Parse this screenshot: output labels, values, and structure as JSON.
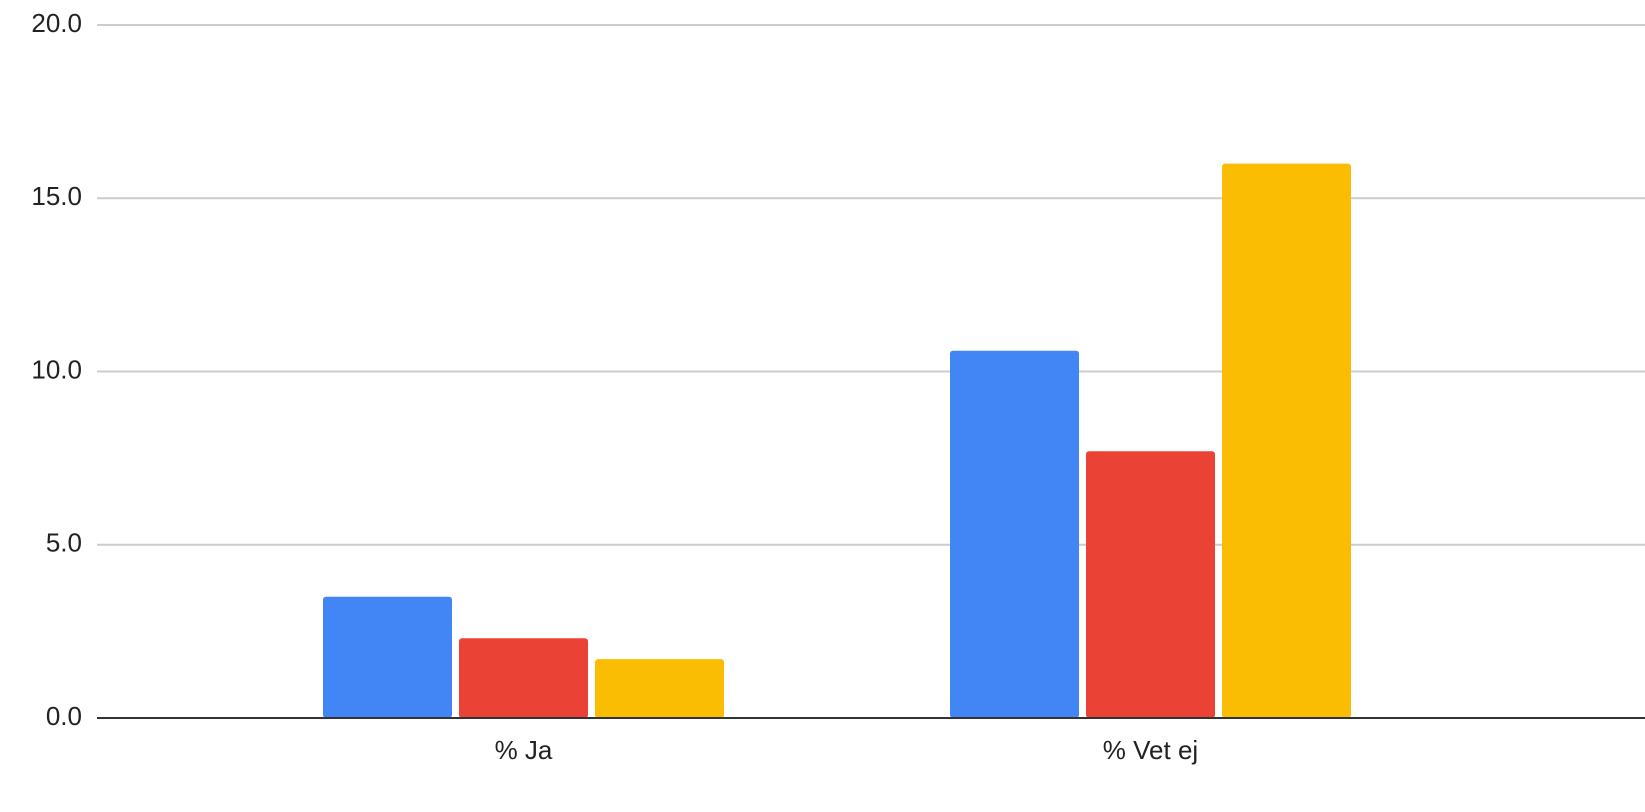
{
  "chart_data": {
    "type": "bar",
    "categories": [
      "% Ja",
      "% Vet ej"
    ],
    "series": [
      {
        "color": "#4285f4",
        "values": [
          3.5,
          10.6
        ]
      },
      {
        "color": "#ea4335",
        "values": [
          2.3,
          7.7
        ]
      },
      {
        "color": "#fbbc04",
        "values": [
          1.7,
          16.0
        ]
      }
    ],
    "ylim": [
      0,
      20
    ],
    "yticks": [
      {
        "value": 0,
        "label": "0.0"
      },
      {
        "value": 5,
        "label": "5.0"
      },
      {
        "value": 10,
        "label": "10.0"
      },
      {
        "value": 15,
        "label": "15.0"
      },
      {
        "value": 20,
        "label": "20.0"
      }
    ],
    "grid": true
  }
}
